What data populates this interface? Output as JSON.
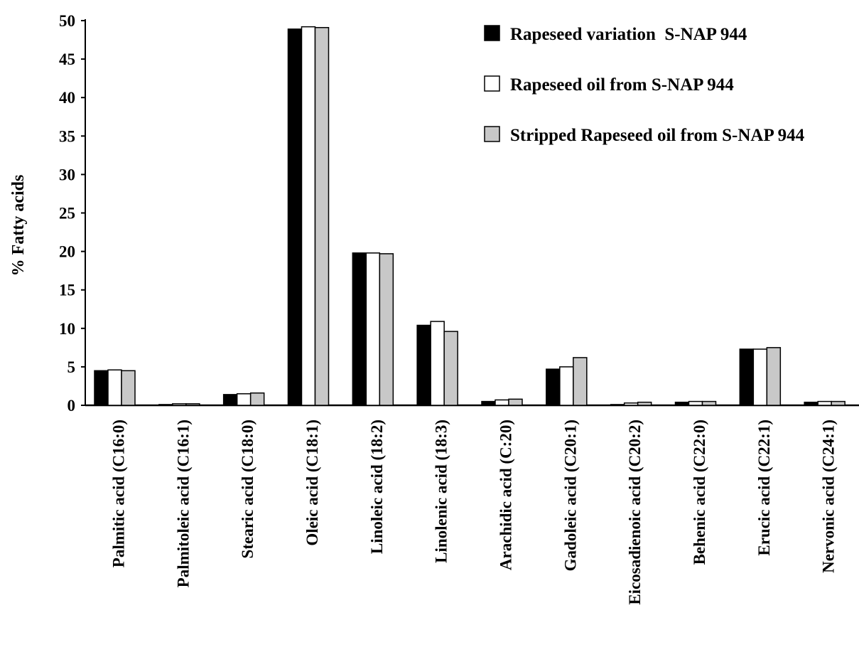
{
  "chart_data": {
    "type": "bar",
    "title": "",
    "xlabel": "",
    "ylabel": "% Fatty acids",
    "ylim": [
      0,
      50
    ],
    "yticks": [
      0,
      5,
      10,
      15,
      20,
      25,
      30,
      35,
      40,
      45,
      50
    ],
    "grid": false,
    "legend_position": "top-right",
    "categories": [
      "Palmitic acid (C16:0)",
      "Palmitoleic acid (C16:1)",
      "Stearic acid (C18:0)",
      "Oleic acid (C18:1)",
      "Linoleic acid (18:2)",
      "Linolenic acid (18:3)",
      "Arachidic acid (C:20)",
      "Gadoleic acid (C20:1)",
      "Eicosadienoic acid (C20:2)",
      "Behenic acid (C22:0)",
      "Erucic acid (C22:1)",
      "Nervonic acid (C24:1)"
    ],
    "series": [
      {
        "name": "Rapeseed variation  S-NAP 944",
        "color": "#000000",
        "values": [
          4.5,
          0.1,
          1.4,
          48.9,
          19.8,
          10.4,
          0.5,
          4.7,
          0.1,
          0.4,
          7.3,
          0.4
        ]
      },
      {
        "name": "Rapeseed oil from S-NAP 944",
        "color": "#ffffff",
        "values": [
          4.6,
          0.2,
          1.5,
          49.2,
          19.8,
          10.9,
          0.7,
          5.0,
          0.3,
          0.5,
          7.3,
          0.5
        ]
      },
      {
        "name": "Stripped Rapeseed oil from S-NAP 944",
        "color": "#c8c8c8",
        "values": [
          4.5,
          0.2,
          1.6,
          49.1,
          19.7,
          9.6,
          0.8,
          6.2,
          0.4,
          0.5,
          7.5,
          0.5
        ]
      }
    ]
  }
}
